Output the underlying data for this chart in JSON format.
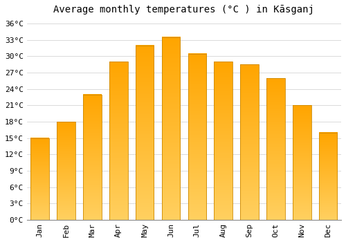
{
  "title": "Average monthly temperatures (°C ) in Kāsganj",
  "months": [
    "Jan",
    "Feb",
    "Mar",
    "Apr",
    "May",
    "Jun",
    "Jul",
    "Aug",
    "Sep",
    "Oct",
    "Nov",
    "Dec"
  ],
  "values": [
    15,
    18,
    23,
    29,
    32,
    33.5,
    30.5,
    29,
    28.5,
    26,
    21,
    16
  ],
  "bar_color_top": "#FFAA00",
  "bar_color_bottom": "#FFD060",
  "bar_edge_color": "#CC8800",
  "background_color": "#FFFFFF",
  "grid_color": "#CCCCCC",
  "yticks": [
    0,
    3,
    6,
    9,
    12,
    15,
    18,
    21,
    24,
    27,
    30,
    33,
    36
  ],
  "ytick_labels": [
    "0°C",
    "3°C",
    "6°C",
    "9°C",
    "12°C",
    "15°C",
    "18°C",
    "21°C",
    "24°C",
    "27°C",
    "30°C",
    "33°C",
    "36°C"
  ],
  "ylim": [
    0,
    37
  ],
  "title_fontsize": 10,
  "tick_fontsize": 8,
  "bar_width": 0.7
}
